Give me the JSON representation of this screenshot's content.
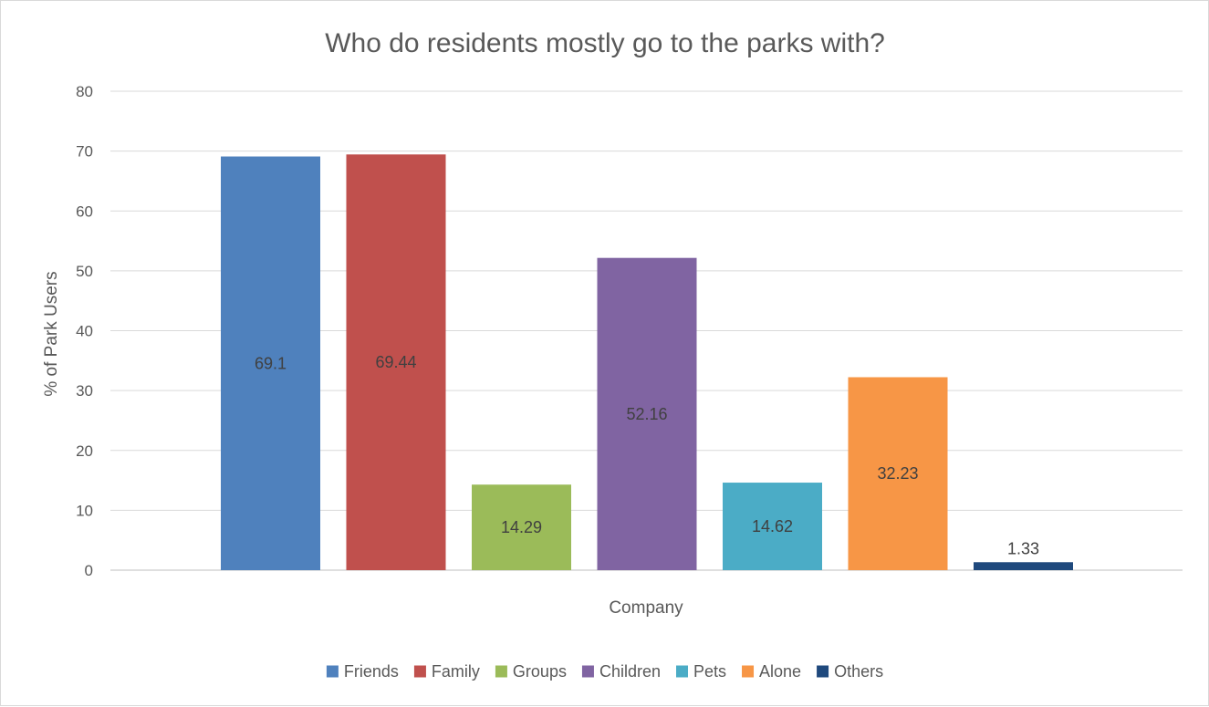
{
  "chart_data": {
    "type": "bar",
    "title": "Who do residents mostly go to the parks with?",
    "xlabel": "Company",
    "ylabel": "% of Park Users",
    "ylim": [
      0,
      80
    ],
    "yticks": [
      0,
      10,
      20,
      30,
      40,
      50,
      60,
      70,
      80
    ],
    "grid": true,
    "legend_position": "bottom",
    "series": [
      {
        "name": "Friends",
        "value": 69.1,
        "label": "69.1",
        "color": "#4f81bd"
      },
      {
        "name": "Family",
        "value": 69.44,
        "label": "69.44",
        "color": "#c0504d"
      },
      {
        "name": "Groups",
        "value": 14.29,
        "label": "14.29",
        "color": "#9bbb59"
      },
      {
        "name": "Children",
        "value": 52.16,
        "label": "52.16",
        "color": "#8064a2"
      },
      {
        "name": "Pets",
        "value": 14.62,
        "label": "14.62",
        "color": "#4bacc6"
      },
      {
        "name": "Alone",
        "value": 32.23,
        "label": "32.23",
        "color": "#f79646"
      },
      {
        "name": "Others",
        "value": 1.33,
        "label": "1.33",
        "color": "#1f497d"
      }
    ]
  }
}
